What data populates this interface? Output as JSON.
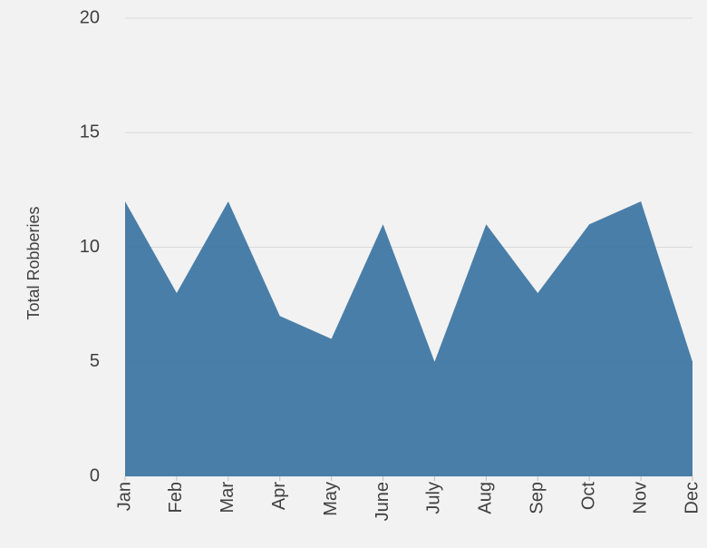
{
  "chart_data": {
    "type": "area",
    "y_label": "Total Robberies",
    "categories": [
      "Jan",
      "Feb",
      "Mar",
      "Apr",
      "May",
      "June",
      "July",
      "Aug",
      "Sep",
      "Oct",
      "Nov",
      "Dec"
    ],
    "values": [
      12,
      8,
      12,
      7,
      6,
      11,
      5,
      11,
      8,
      11,
      12,
      5
    ],
    "color": "#3f77a3",
    "ylim": [
      0,
      20
    ],
    "yticks": [
      0,
      5,
      10,
      15,
      20
    ],
    "grid": true
  }
}
